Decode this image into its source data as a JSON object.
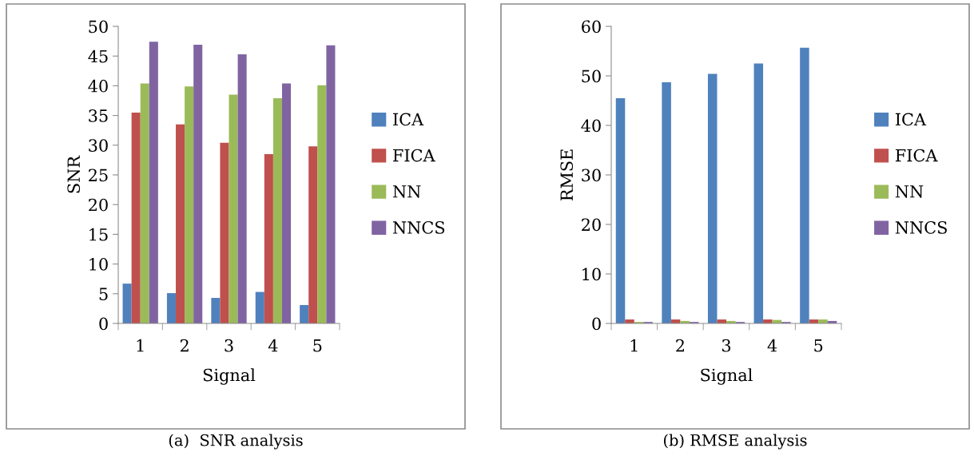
{
  "chart_data": [
    {
      "type": "bar",
      "categories": [
        "1",
        "2",
        "3",
        "4",
        "5"
      ],
      "xlabel": "Signal",
      "ylabel": "SNR",
      "ylim": [
        0,
        50
      ],
      "yticks": [
        0,
        5,
        10,
        15,
        20,
        25,
        30,
        35,
        40,
        45,
        50
      ],
      "grid": false,
      "legend": "right",
      "annotations": [
        "(a)  SNR analysis"
      ],
      "series": [
        {
          "name": "ICA",
          "color": "#4f81bd",
          "values": [
            6.7,
            5.1,
            4.3,
            5.3,
            3.1
          ]
        },
        {
          "name": "FICA",
          "color": "#c0504d",
          "values": [
            35.5,
            33.5,
            30.4,
            28.5,
            29.8
          ]
        },
        {
          "name": "NN",
          "color": "#9bbb59",
          "values": [
            40.4,
            39.9,
            38.5,
            37.9,
            40.1
          ]
        },
        {
          "name": "NNCS",
          "color": "#8064a2",
          "values": [
            47.4,
            46.9,
            45.3,
            40.4,
            46.8
          ]
        }
      ]
    },
    {
      "type": "bar",
      "categories": [
        "1",
        "2",
        "3",
        "4",
        "5"
      ],
      "xlabel": "Signal",
      "ylabel": "RMSE",
      "ylim": [
        0,
        60
      ],
      "yticks": [
        0,
        10,
        20,
        30,
        40,
        50,
        60
      ],
      "grid": false,
      "legend": "right",
      "annotations": [
        "(b) RMSE analysis"
      ],
      "series": [
        {
          "name": "ICA",
          "color": "#4f81bd",
          "values": [
            45.5,
            48.7,
            50.4,
            52.5,
            55.7
          ]
        },
        {
          "name": "FICA",
          "color": "#c0504d",
          "values": [
            0.8,
            0.8,
            0.8,
            0.8,
            0.8
          ]
        },
        {
          "name": "NN",
          "color": "#9bbb59",
          "values": [
            0.3,
            0.5,
            0.5,
            0.7,
            0.8
          ]
        },
        {
          "name": "NNCS",
          "color": "#8064a2",
          "values": [
            0.3,
            0.3,
            0.3,
            0.3,
            0.5
          ]
        }
      ]
    }
  ]
}
